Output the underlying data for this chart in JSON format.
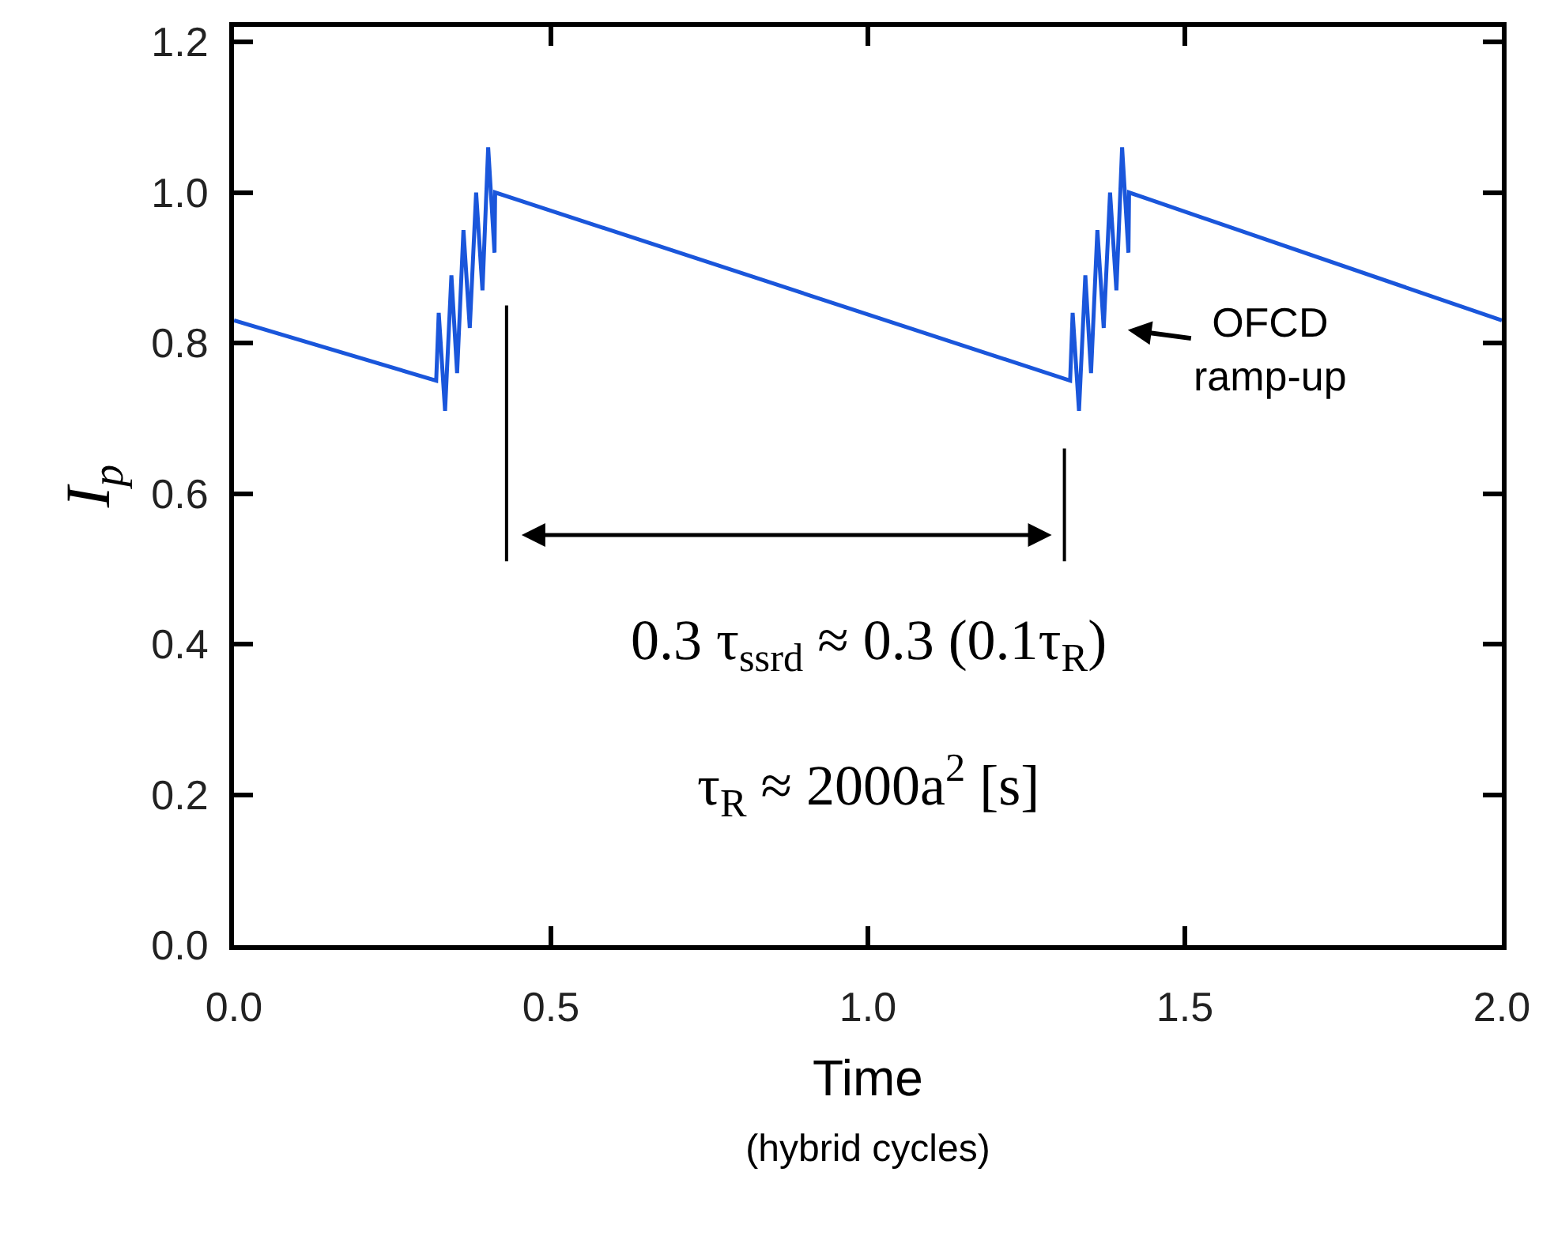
{
  "chart_data": {
    "type": "line",
    "xlabel": "Time\n(hybrid cycles)",
    "ylabel": "I$_{p}$",
    "x": [
      0,
      0.319,
      0.323,
      0.333,
      0.343,
      0.352,
      0.362,
      0.372,
      0.382,
      0.392,
      0.401,
      0.411,
      0.412,
      1.319,
      1.323,
      1.333,
      1.343,
      1.352,
      1.362,
      1.372,
      1.382,
      1.392,
      1.401,
      1.411,
      1.412,
      2.0
    ],
    "series": [
      {
        "color": "#1a56db",
        "values": [
          0.83,
          0.75,
          0.84,
          0.71,
          0.89,
          0.76,
          0.95,
          0.82,
          1.0,
          0.87,
          1.06,
          0.92,
          1.0,
          0.75,
          0.84,
          0.71,
          0.89,
          0.76,
          0.95,
          0.82,
          1.0,
          0.87,
          1.06,
          0.92,
          1.0,
          0.83
        ]
      }
    ],
    "xlim": [
      0,
      2.0
    ],
    "ylim": [
      0,
      1.22
    ],
    "xticks": [
      {
        "value": 0,
        "label": "0.0"
      },
      {
        "value": 0.5,
        "label": "0.5"
      },
      {
        "value": 1.0,
        "label": "1.0"
      },
      {
        "value": 1.5,
        "label": "1.5"
      },
      {
        "value": 2.0,
        "label": "2.0"
      }
    ],
    "yticks": [
      {
        "value": 0,
        "label": "0.0"
      },
      {
        "value": 0.2,
        "label": "0.2"
      },
      {
        "value": 0.4,
        "label": "0.4"
      },
      {
        "value": 0.6,
        "label": "0.6"
      },
      {
        "value": 0.8,
        "label": "0.8"
      },
      {
        "value": 1.0,
        "label": "1.0"
      },
      {
        "value": 1.2,
        "label": "1.2"
      }
    ],
    "ref_lines": [
      {
        "axis": "x",
        "value": 0.43,
        "color": "#000000"
      },
      {
        "axis": "x",
        "value": 1.31,
        "color": "#000000"
      }
    ],
    "annotations": [
      "OFCD\nramp-up",
      "0.3 τ$_{ssrd}$ ≈ 0.3 (0.1τ$_{R}$)",
      "τ$_{R}$ ≈ 2000a$^{2}$ [s]"
    ],
    "legend": false,
    "marker": "none",
    "line_style": "solid"
  }
}
